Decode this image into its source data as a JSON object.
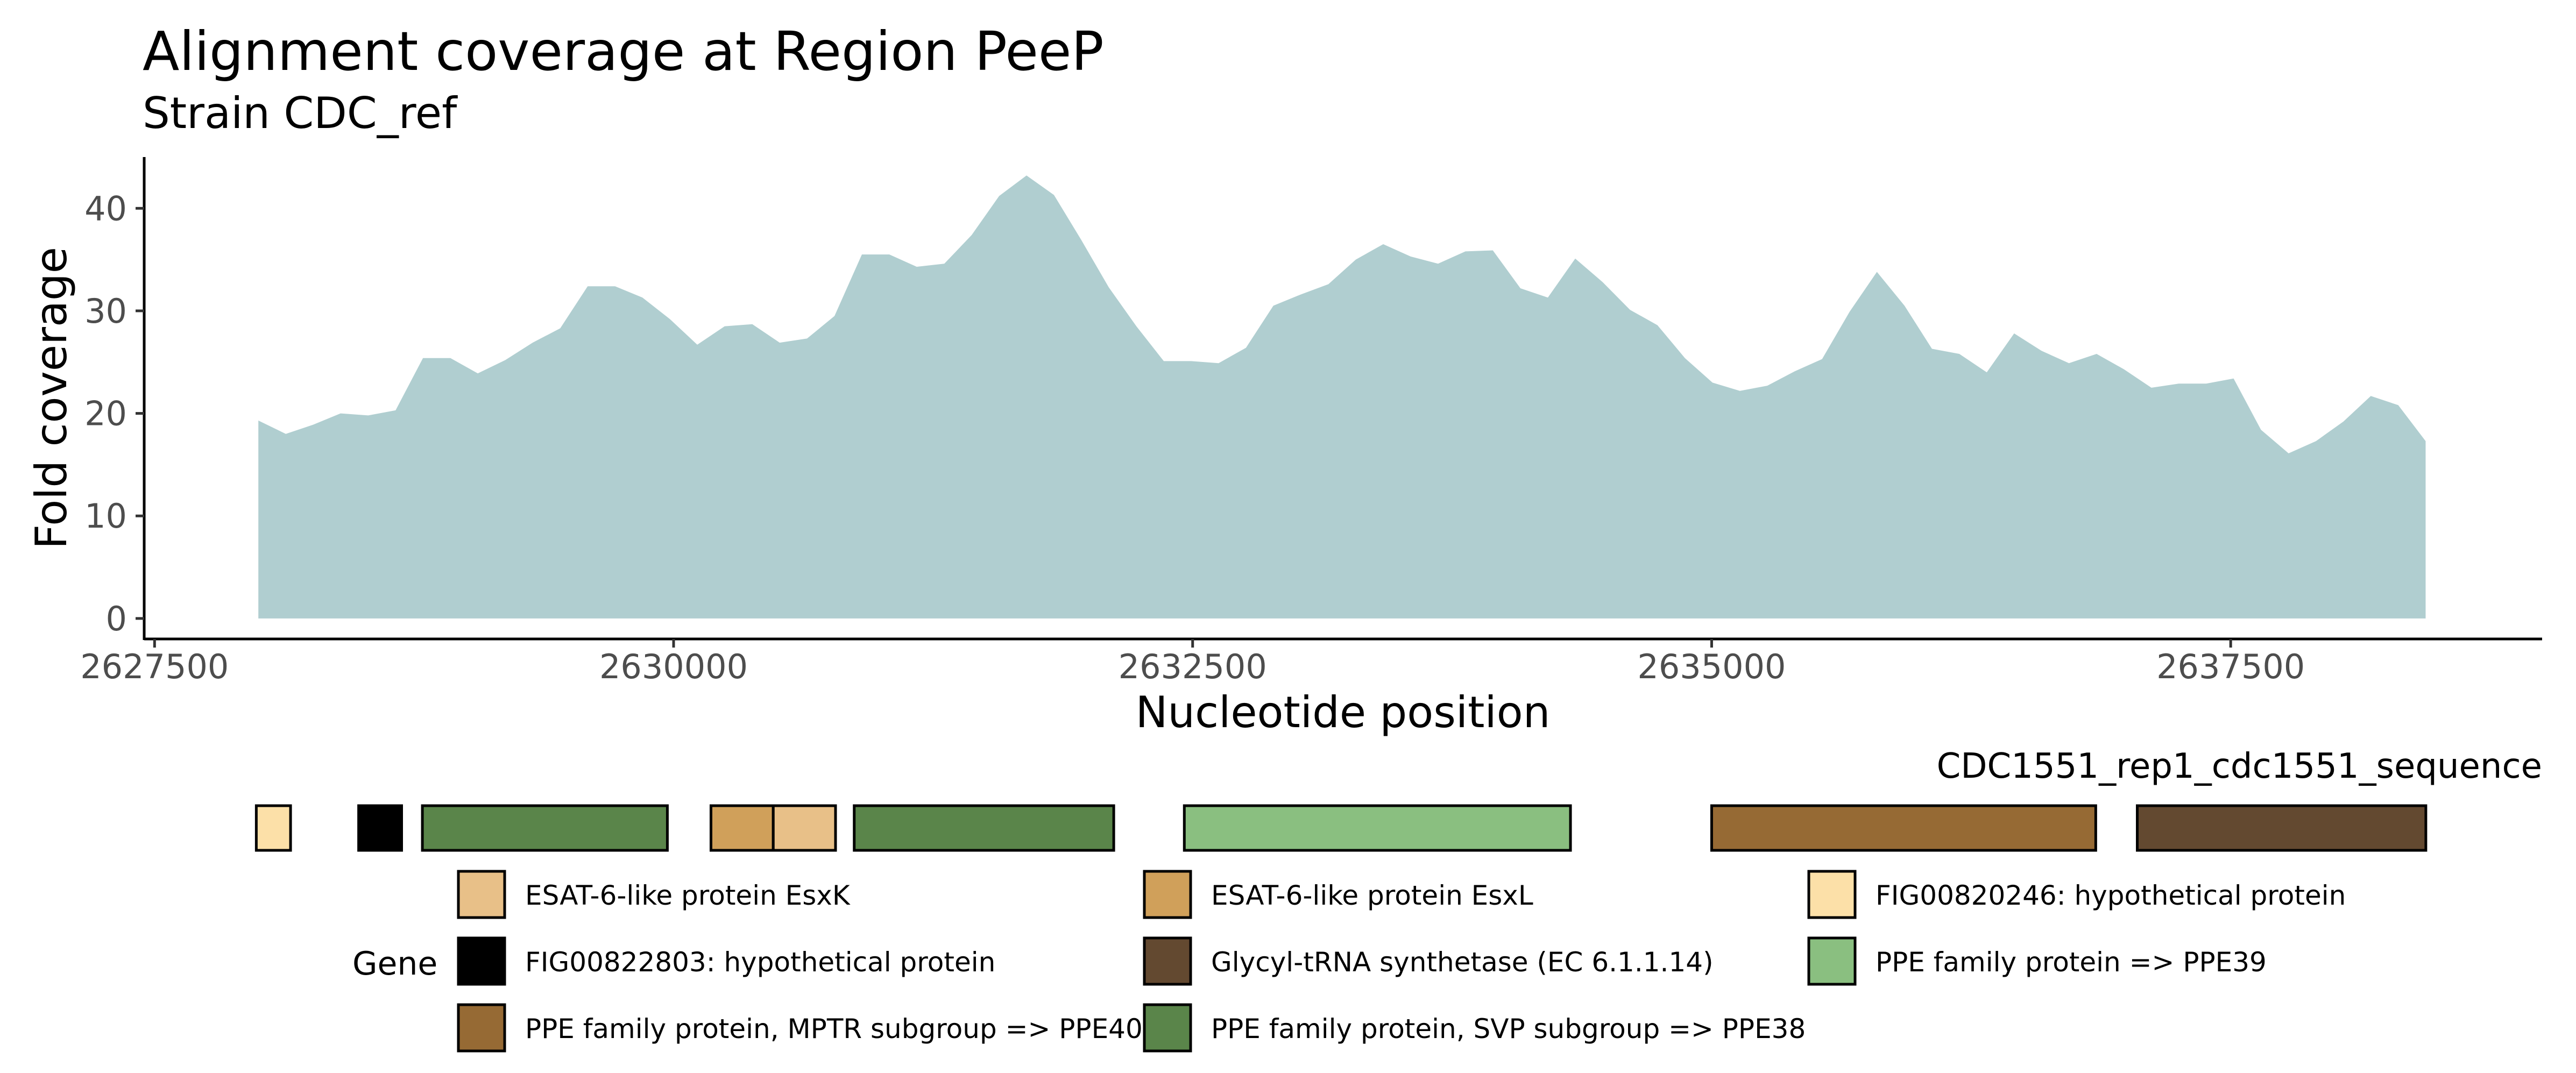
{
  "chart_data": {
    "type": "area",
    "title": "Alignment coverage at Region PeeP",
    "subtitle": "Strain CDC_ref",
    "xlabel": "Nucleotide position",
    "ylabel": "Fold coverage",
    "xlim": [
      2627450,
      2639000
    ],
    "ylim": [
      -2,
      45
    ],
    "x_ticks": [
      2627500,
      2630000,
      2632500,
      2635000,
      2637500
    ],
    "y_ticks": [
      0,
      10,
      20,
      30,
      40
    ],
    "grid": false,
    "fill_color": "#b0ced0",
    "x": [
      2628000,
      2628132,
      2628264,
      2628396,
      2628529,
      2628661,
      2628793,
      2628925,
      2629057,
      2629189,
      2629321,
      2629454,
      2629586,
      2629718,
      2629850,
      2629982,
      2630114,
      2630246,
      2630379,
      2630511,
      2630643,
      2630775,
      2630907,
      2631039,
      2631171,
      2631304,
      2631436,
      2631568,
      2631700,
      2631832,
      2631964,
      2632096,
      2632229,
      2632361,
      2632493,
      2632625,
      2632757,
      2632889,
      2633021,
      2633154,
      2633286,
      2633418,
      2633550,
      2633682,
      2633814,
      2633946,
      2634079,
      2634211,
      2634343,
      2634475,
      2634607,
      2634739,
      2634871,
      2635004,
      2635136,
      2635268,
      2635400,
      2635532,
      2635664,
      2635796,
      2635929,
      2636061,
      2636193,
      2636325,
      2636457,
      2636589,
      2636721,
      2636854,
      2636986,
      2637118,
      2637250,
      2637382,
      2637514,
      2637646,
      2637779,
      2637911,
      2638043,
      2638175,
      2638307,
      2638439
    ],
    "y": [
      19.3,
      18.0,
      18.9,
      20.0,
      19.8,
      20.3,
      25.4,
      25.4,
      23.9,
      25.2,
      26.9,
      28.3,
      32.4,
      32.4,
      31.3,
      29.2,
      26.7,
      28.5,
      28.7,
      26.9,
      27.3,
      29.5,
      35.5,
      35.5,
      34.3,
      34.6,
      37.4,
      41.2,
      43.2,
      41.3,
      36.9,
      32.3,
      28.5,
      25.1,
      25.1,
      24.9,
      26.4,
      30.5,
      31.6,
      32.6,
      35.0,
      36.5,
      35.3,
      34.6,
      35.8,
      35.9,
      32.2,
      31.3,
      35.1,
      32.8,
      30.1,
      28.6,
      25.4,
      23.0,
      22.2,
      22.7,
      24.1,
      25.3,
      29.9,
      33.8,
      30.5,
      26.3,
      25.8,
      24.0,
      27.8,
      26.1,
      24.9,
      25.8,
      24.3,
      22.5,
      22.9,
      22.9,
      23.4,
      18.4,
      16.1,
      17.3,
      19.2,
      21.7,
      20.8,
      17.3
    ]
  },
  "gene_track": {
    "sequence_label": "CDC1551_rep1_cdc1551_sequence",
    "genes": [
      {
        "start": 2627990,
        "end": 2628155,
        "color": "#fce0a8"
      },
      {
        "start": 2628483,
        "end": 2628690,
        "color": "#000000"
      },
      {
        "start": 2628790,
        "end": 2629970,
        "color": "#5a854a"
      },
      {
        "start": 2630180,
        "end": 2630480,
        "color": "#d0a05a"
      },
      {
        "start": 2630480,
        "end": 2630780,
        "color": "#e8c088"
      },
      {
        "start": 2630870,
        "end": 2632120,
        "color": "#5a854a"
      },
      {
        "start": 2632460,
        "end": 2634320,
        "color": "#8abf80"
      },
      {
        "start": 2635000,
        "end": 2636850,
        "color": "#966a34"
      },
      {
        "start": 2637050,
        "end": 2638440,
        "color": "#634930"
      }
    ]
  },
  "legend": {
    "title": "Gene",
    "items": [
      {
        "label": "ESAT-6-like protein EsxK",
        "color": "#e8c088"
      },
      {
        "label": "ESAT-6-like protein EsxL",
        "color": "#d0a05a"
      },
      {
        "label": "FIG00820246: hypothetical protein",
        "color": "#fce0a8"
      },
      {
        "label": "FIG00822803: hypothetical protein",
        "color": "#000000"
      },
      {
        "label": "Glycyl-tRNA synthetase (EC 6.1.1.14)",
        "color": "#634930"
      },
      {
        "label": "PPE family protein => PPE39",
        "color": "#8abf80"
      },
      {
        "label": "PPE family protein, MPTR subgroup => PPE40",
        "color": "#966a34"
      },
      {
        "label": "PPE family protein, SVP subgroup => PPE38",
        "color": "#5a854a"
      }
    ]
  }
}
